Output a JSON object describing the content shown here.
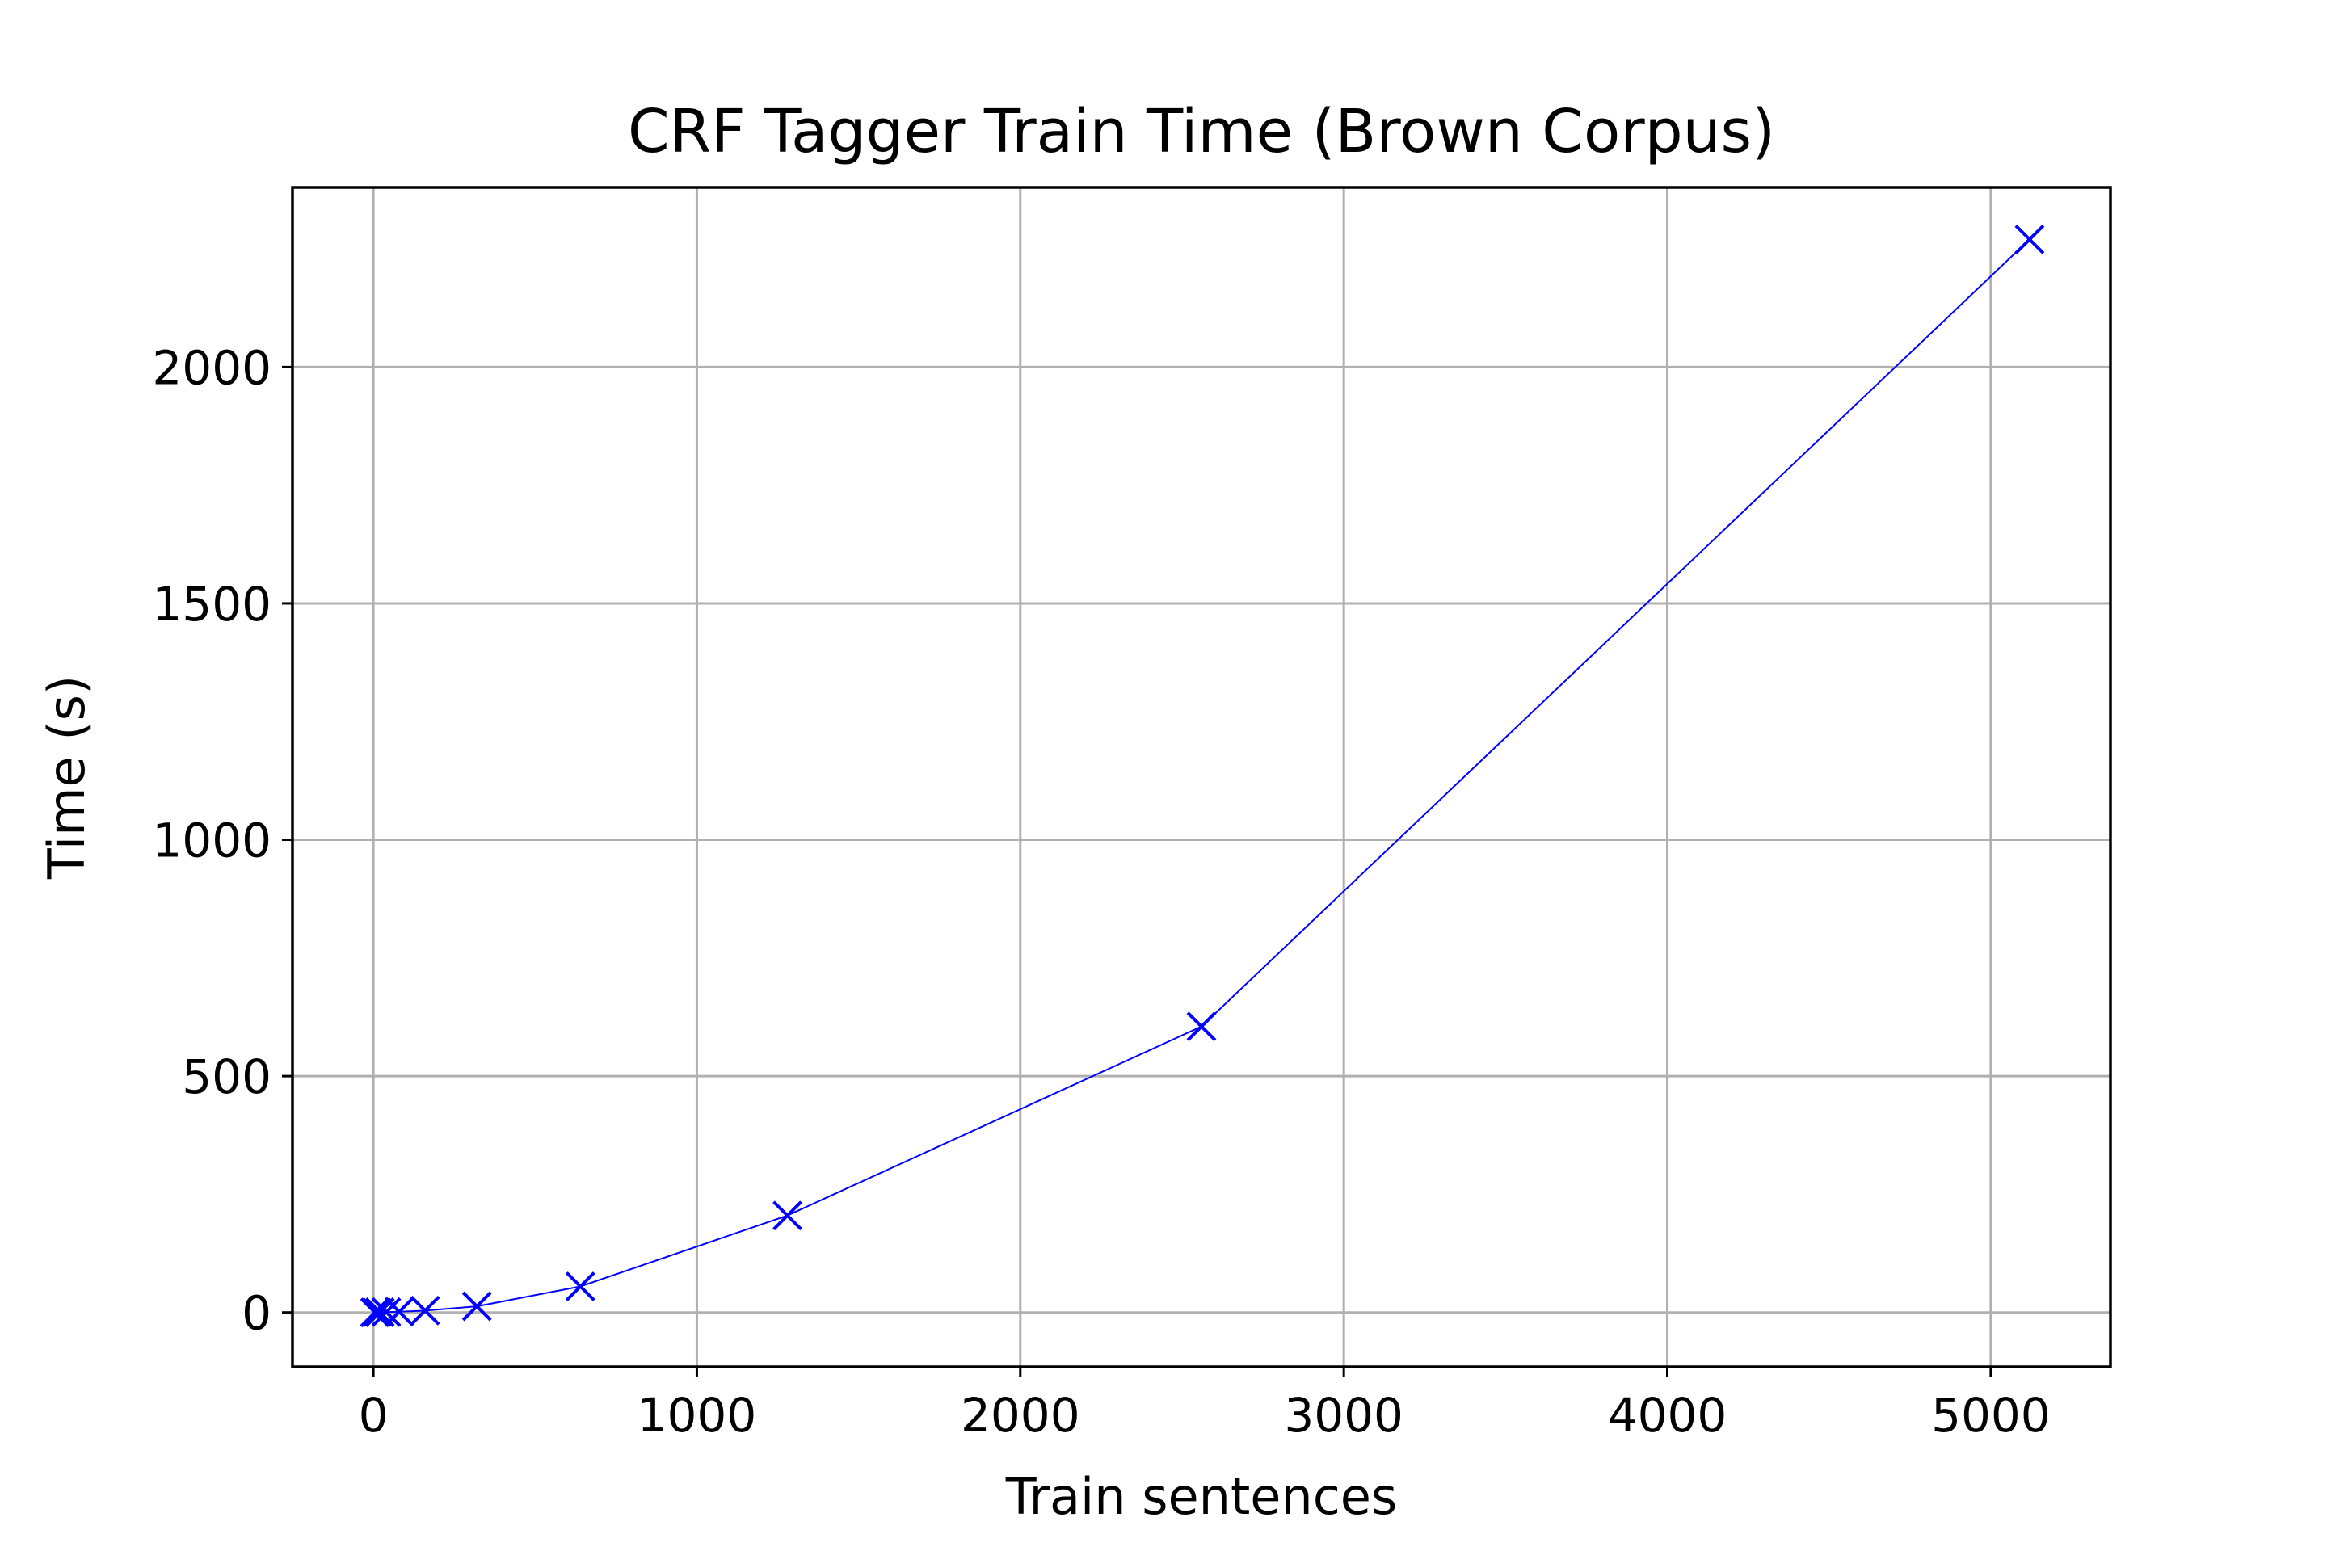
{
  "chart_data": {
    "type": "line",
    "title": "CRF Tagger Train Time (Brown Corpus)",
    "xlabel": "Train sentences",
    "ylabel": "Time (s)",
    "xlim": [
      -250,
      5370
    ],
    "ylim": [
      -115,
      2380
    ],
    "xticks": [
      0,
      1000,
      2000,
      3000,
      4000,
      5000
    ],
    "yticks": [
      0,
      500,
      1000,
      1500,
      2000
    ],
    "grid": true,
    "marker": "x",
    "line_color": "#0000ff",
    "series": [
      {
        "x": [
          5,
          10,
          20,
          40,
          80,
          160,
          320,
          640,
          1280,
          2560,
          5120
        ],
        "y": [
          0.1,
          0.2,
          0.4,
          0.8,
          1.5,
          4,
          13,
          55,
          205,
          605,
          2270
        ]
      }
    ]
  }
}
